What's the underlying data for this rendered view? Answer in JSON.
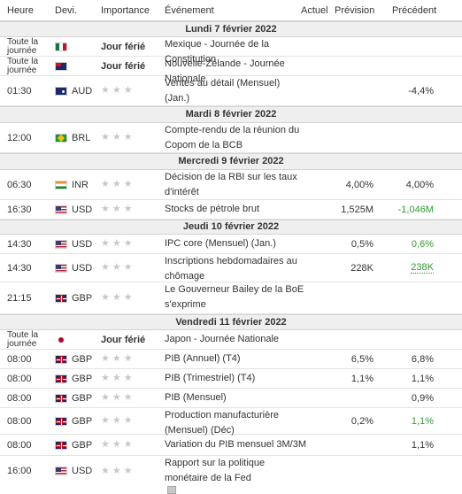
{
  "header": {
    "time": "Heure",
    "currency": "Devi.",
    "importance": "Importance",
    "event": "Événement",
    "actual": "Actuel",
    "forecast": "Prévision",
    "previous": "Précédent"
  },
  "days": {
    "d1": "Lundi 7 février 2022",
    "d2": "Mardi 8 février 2022",
    "d3": "Mercredi 9 février 2022",
    "d4": "Jeudi 10 février 2022",
    "d5": "Vendredi 11 février 2022"
  },
  "icons": {
    "star": "★",
    "speaker": "🔊",
    "document": "document-icon"
  },
  "colors": {
    "positive": "#2e9e2e",
    "star_inactive": "#c8c8c8",
    "date_bg": "#efefef"
  },
  "events": {
    "e1": {
      "time": "Toute la journée",
      "flag": "mexico-flag",
      "currency": "",
      "importance": "Jour férié",
      "event": "Mexique - Journée de la Constitution",
      "actual": "",
      "forecast": "",
      "previous": ""
    },
    "e2": {
      "time": "Toute la journée",
      "flag": "new-zealand-flag",
      "currency": "",
      "importance": "Jour férié",
      "event": "Nouvelle-Zélande - Journée Nationale",
      "actual": "",
      "forecast": "",
      "previous": ""
    },
    "e3": {
      "time": "01:30",
      "flag": "australia-flag",
      "currency": "AUD",
      "importance": "",
      "event": "Ventes au détail (Mensuel) (Jan.)",
      "actual": "",
      "forecast": "",
      "previous": "-4,4%"
    },
    "e4": {
      "time": "12:00",
      "flag": "brazil-flag",
      "currency": "BRL",
      "importance": "",
      "event": "Compte-rendu de la réunion du Copom de la BCB",
      "actual": "",
      "forecast": "",
      "previous": ""
    },
    "e5": {
      "time": "06:30",
      "flag": "india-flag",
      "currency": "INR",
      "importance": "",
      "event": "Décision de la RBI sur les taux d'intérêt",
      "actual": "",
      "forecast": "4,00%",
      "previous": "4,00%"
    },
    "e6": {
      "time": "16:30",
      "flag": "usa-flag",
      "currency": "USD",
      "importance": "",
      "event": "Stocks de pétrole brut",
      "actual": "",
      "forecast": "1,525M",
      "previous": "-1,046M"
    },
    "e7": {
      "time": "14:30",
      "flag": "usa-flag",
      "currency": "USD",
      "importance": "",
      "event": "IPC core (Mensuel) (Jan.)",
      "actual": "",
      "forecast": "0,5%",
      "previous": "0,6%"
    },
    "e8": {
      "time": "14:30",
      "flag": "usa-flag",
      "currency": "USD",
      "importance": "",
      "event": "Inscriptions hebdomadaires au chômage",
      "actual": "",
      "forecast": "228K",
      "previous": "238K"
    },
    "e9": {
      "time": "21:15",
      "flag": "uk-flag",
      "currency": "GBP",
      "importance": "",
      "event": "Le Gouverneur Bailey de la BoE s'exprime",
      "actual": "",
      "forecast": "",
      "previous": ""
    },
    "e10": {
      "time": "Toute la journée",
      "flag": "japan-flag",
      "currency": "",
      "importance": "Jour férié",
      "event": "Japon - Journée Nationale",
      "actual": "",
      "forecast": "",
      "previous": ""
    },
    "e11": {
      "time": "08:00",
      "flag": "uk-flag",
      "currency": "GBP",
      "importance": "",
      "event": "PIB (Annuel) (T4)",
      "actual": "",
      "forecast": "6,5%",
      "previous": "6,8%"
    },
    "e12": {
      "time": "08:00",
      "flag": "uk-flag",
      "currency": "GBP",
      "importance": "",
      "event": "PIB (Trimestriel) (T4)",
      "actual": "",
      "forecast": "1,1%",
      "previous": "1,1%"
    },
    "e13": {
      "time": "08:00",
      "flag": "uk-flag",
      "currency": "GBP",
      "importance": "",
      "event": "PIB (Mensuel)",
      "actual": "",
      "forecast": "",
      "previous": "0,9%"
    },
    "e14": {
      "time": "08:00",
      "flag": "uk-flag",
      "currency": "GBP",
      "importance": "",
      "event": "Production manufacturière (Mensuel) (Déc)",
      "actual": "",
      "forecast": "0,2%",
      "previous": "1,1%"
    },
    "e15": {
      "time": "08:00",
      "flag": "uk-flag",
      "currency": "GBP",
      "importance": "",
      "event": "Variation du PIB mensuel 3M/3M",
      "actual": "",
      "forecast": "",
      "previous": "1,1%"
    },
    "e16": {
      "time": "16:00",
      "flag": "usa-flag",
      "currency": "USD",
      "importance": "",
      "event": "Rapport sur la politique monétaire de la Fed",
      "actual": "",
      "forecast": "",
      "previous": ""
    }
  }
}
